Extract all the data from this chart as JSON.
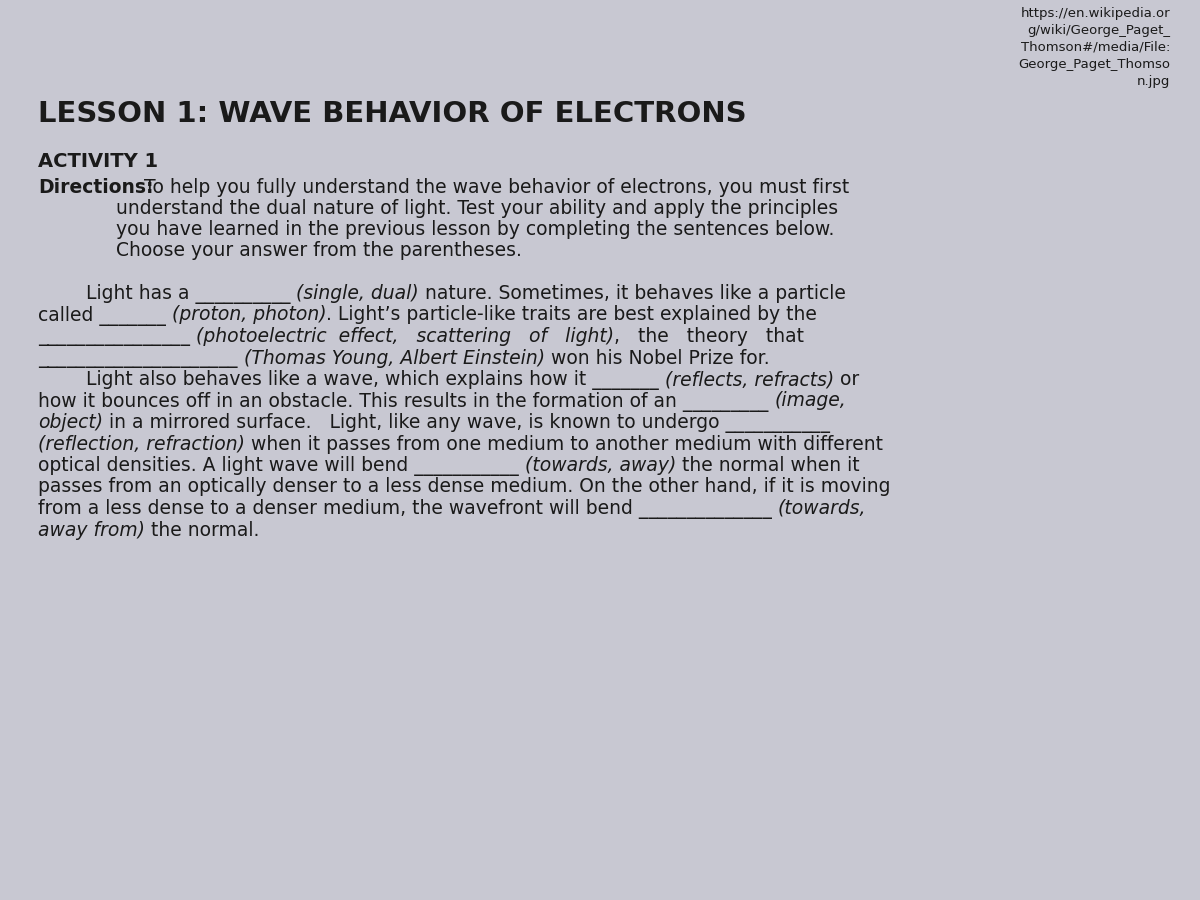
{
  "bg_color": "#c8c8d2",
  "font_color": "#1a1a1a",
  "title": "LESSON 1: WAVE BEHAVIOR OF ELECTRONS",
  "activity_label": "ACTIVITY 1",
  "url_lines": "https://en.wikipedia.or\ng/wiki/George_Paget_\nThomson#/media/File:\nGeorge_Paget_Thomso\nn.jpg",
  "title_fontsize": 21,
  "activity_fontsize": 14,
  "body_fontsize": 13.5,
  "url_fontsize": 9.5,
  "directions_header": "Directions:",
  "dir_line1": " To help you fully understand the wave behavior of electrons, you must first",
  "dir_line2": "             understand the dual nature of light. Test your ability and apply the principles",
  "dir_line3": "             you have learned in the previous lesson by completing the sentences below.",
  "dir_line4": "             Choose your answer from the parentheses.",
  "body_segments": [
    [
      {
        "t": "        Light has a __________ ",
        "s": "n"
      },
      {
        "t": "(single, dual)",
        "s": "i"
      },
      {
        "t": " nature. Sometimes, it behaves like a particle",
        "s": "n"
      }
    ],
    [
      {
        "t": "called _______ ",
        "s": "n"
      },
      {
        "t": "(proton, photon)",
        "s": "i"
      },
      {
        "t": ". Light’s particle-like traits are best explained by the",
        "s": "n"
      }
    ],
    [
      {
        "t": "________________ ",
        "s": "n"
      },
      {
        "t": "(photoelectric  effect,   scattering   of   light)",
        "s": "i"
      },
      {
        "t": ",   the   theory   that",
        "s": "n"
      }
    ],
    [
      {
        "t": "_____________________ ",
        "s": "n"
      },
      {
        "t": "(Thomas Young, Albert Einstein)",
        "s": "i"
      },
      {
        "t": " won his Nobel Prize for.",
        "s": "n"
      }
    ],
    [
      {
        "t": "        Light also behaves like a wave, which explains how it _______ ",
        "s": "n"
      },
      {
        "t": "(reflects, refracts)",
        "s": "i"
      },
      {
        "t": " or",
        "s": "n"
      }
    ],
    [
      {
        "t": "how it bounces off in an obstacle. This results in the formation of an _________ ",
        "s": "n"
      },
      {
        "t": "(image,",
        "s": "i"
      }
    ],
    [
      {
        "t": "object)",
        "s": "i"
      },
      {
        "t": " in a mirrored surface.   Light, like any wave, is known to undergo ___________",
        "s": "n"
      }
    ],
    [
      {
        "t": "(reflection, refraction)",
        "s": "i"
      },
      {
        "t": " when it passes from one medium to another medium with different",
        "s": "n"
      }
    ],
    [
      {
        "t": "optical densities. A light wave will bend ___________ ",
        "s": "n"
      },
      {
        "t": "(towards, away)",
        "s": "i"
      },
      {
        "t": " the normal when it",
        "s": "n"
      }
    ],
    [
      {
        "t": "passes from an optically denser to a less dense medium. On the other hand, if it is moving",
        "s": "n"
      }
    ],
    [
      {
        "t": "from a less dense to a denser medium, the wavefront will bend ______________ ",
        "s": "n"
      },
      {
        "t": "(towards,",
        "s": "i"
      }
    ],
    [
      {
        "t": "away from)",
        "s": "i"
      },
      {
        "t": " the normal.",
        "s": "n"
      }
    ]
  ]
}
